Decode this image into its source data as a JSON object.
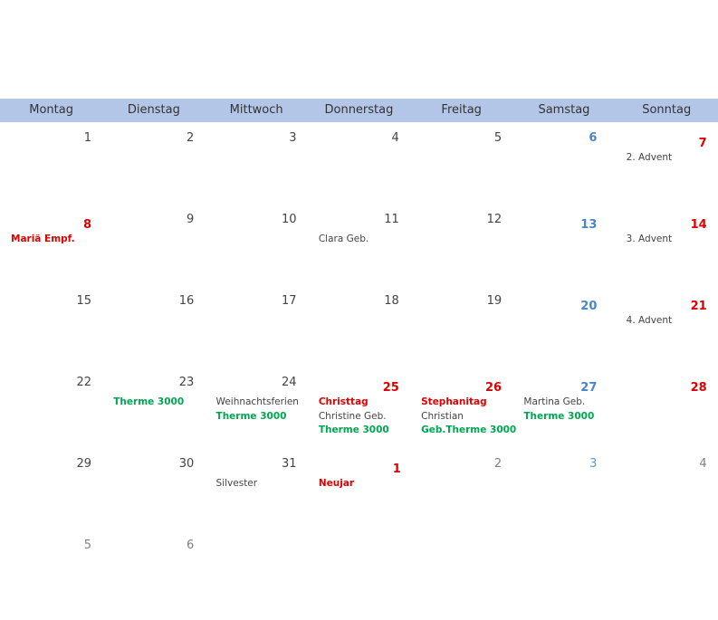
{
  "weekdays": [
    "Montag",
    "Dienstag",
    "Mittwoch",
    "Donnerstag",
    "Freitag",
    "Samstag",
    "Sonntag"
  ],
  "colors": {
    "header_bg": "#b4c6e7",
    "holiday_red": "#e00000",
    "saturday_blue": "#4a86c6",
    "event_green": "#00a650"
  },
  "weeks": [
    [
      {
        "day": "1",
        "style": "normal",
        "notes": []
      },
      {
        "day": "2",
        "style": "normal",
        "notes": []
      },
      {
        "day": "3",
        "style": "normal",
        "notes": []
      },
      {
        "day": "4",
        "style": "normal",
        "notes": []
      },
      {
        "day": "5",
        "style": "normal",
        "notes": []
      },
      {
        "day": "6",
        "style": "sat",
        "notes": []
      },
      {
        "day": "7",
        "style": "red",
        "notes": [
          {
            "text": "2. Advent",
            "style": "plain"
          }
        ]
      }
    ],
    [
      {
        "day": "8",
        "style": "red",
        "notes": [
          {
            "text": "Mariä Empf.",
            "style": "red"
          }
        ]
      },
      {
        "day": "9",
        "style": "normal",
        "notes": []
      },
      {
        "day": "10",
        "style": "normal",
        "notes": []
      },
      {
        "day": "11",
        "style": "normal",
        "notes": [
          {
            "text": "Clara Geb.",
            "style": "plain"
          }
        ]
      },
      {
        "day": "12",
        "style": "normal",
        "notes": []
      },
      {
        "day": "13",
        "style": "sat",
        "notes": []
      },
      {
        "day": "14",
        "style": "red",
        "notes": [
          {
            "text": "3. Advent",
            "style": "plain"
          }
        ]
      }
    ],
    [
      {
        "day": "15",
        "style": "normal",
        "notes": []
      },
      {
        "day": "16",
        "style": "normal",
        "notes": []
      },
      {
        "day": "17",
        "style": "normal",
        "notes": []
      },
      {
        "day": "18",
        "style": "normal",
        "notes": []
      },
      {
        "day": "19",
        "style": "normal",
        "notes": []
      },
      {
        "day": "20",
        "style": "sat",
        "notes": []
      },
      {
        "day": "21",
        "style": "red",
        "notes": [
          {
            "text": "4. Advent",
            "style": "plain"
          }
        ]
      }
    ],
    [
      {
        "day": "22",
        "style": "normal",
        "notes": []
      },
      {
        "day": "23",
        "style": "normal",
        "notes": [
          {
            "text": "Therme 3000",
            "style": "green"
          }
        ]
      },
      {
        "day": "24",
        "style": "normal",
        "notes": [
          {
            "text": "Weihnachtsferien",
            "style": "plain"
          },
          {
            "text": "Therme 3000",
            "style": "green"
          }
        ]
      },
      {
        "day": "25",
        "style": "red",
        "notes": [
          {
            "text": "Christtag",
            "style": "red"
          },
          {
            "text": "Christine Geb.",
            "style": "plain"
          },
          {
            "text": "Therme 3000",
            "style": "green"
          }
        ]
      },
      {
        "day": "26",
        "style": "red",
        "notes": [
          {
            "text": "Stephanitag",
            "style": "red"
          },
          {
            "text": "Christian",
            "style": "plain"
          },
          {
            "text": "Geb.Therme 3000",
            "style": "green"
          }
        ]
      },
      {
        "day": "27",
        "style": "sat",
        "notes": [
          {
            "text": "Martina Geb.",
            "style": "plain"
          },
          {
            "text": "Therme 3000",
            "style": "green"
          }
        ]
      },
      {
        "day": "28",
        "style": "red",
        "notes": []
      }
    ],
    [
      {
        "day": "29",
        "style": "normal",
        "notes": []
      },
      {
        "day": "30",
        "style": "normal",
        "notes": []
      },
      {
        "day": "31",
        "style": "normal",
        "notes": [
          {
            "text": "Silvester",
            "style": "plain"
          }
        ]
      },
      {
        "day": "1",
        "style": "red",
        "notes": [
          {
            "text": "Neujar",
            "style": "red"
          }
        ]
      },
      {
        "day": "2",
        "style": "dim",
        "notes": []
      },
      {
        "day": "3",
        "style": "satdim",
        "notes": []
      },
      {
        "day": "4",
        "style": "dim",
        "notes": []
      }
    ],
    [
      {
        "day": "5",
        "style": "dim",
        "notes": []
      },
      {
        "day": "6",
        "style": "dim",
        "notes": []
      }
    ]
  ]
}
